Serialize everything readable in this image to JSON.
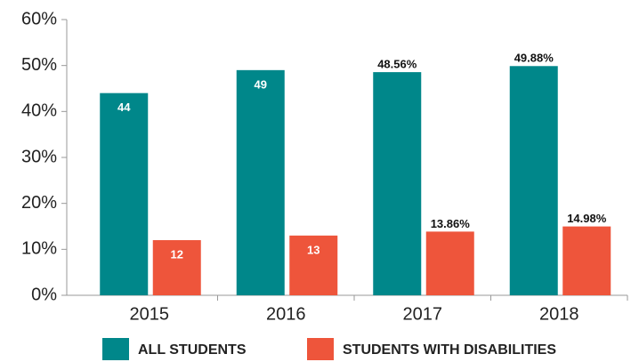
{
  "chart_data": {
    "type": "bar",
    "categories": [
      "2015",
      "2016",
      "2017",
      "2018"
    ],
    "series": [
      {
        "name": "ALL STUDENTS",
        "color": "#00878a",
        "values": [
          44,
          49,
          48.56,
          49.88
        ],
        "value_labels": [
          "44",
          "49",
          "48.56%",
          "49.88%"
        ]
      },
      {
        "name": "STUDENTS WITH DISABILITIES",
        "color": "#ee553b",
        "values": [
          12,
          13,
          13.86,
          14.98
        ],
        "value_labels": [
          "12",
          "13",
          "13.86%",
          "14.98%"
        ]
      }
    ],
    "ylim": [
      0,
      60
    ],
    "yticks": [
      {
        "value": 0,
        "label": "0%"
      },
      {
        "value": 10,
        "label": "10%"
      },
      {
        "value": 20,
        "label": "20%"
      },
      {
        "value": 30,
        "label": "30%"
      },
      {
        "value": 40,
        "label": "40%"
      },
      {
        "value": 50,
        "label": "50%"
      },
      {
        "value": 60,
        "label": "60%"
      }
    ],
    "grid": false,
    "legend": "bottom"
  }
}
